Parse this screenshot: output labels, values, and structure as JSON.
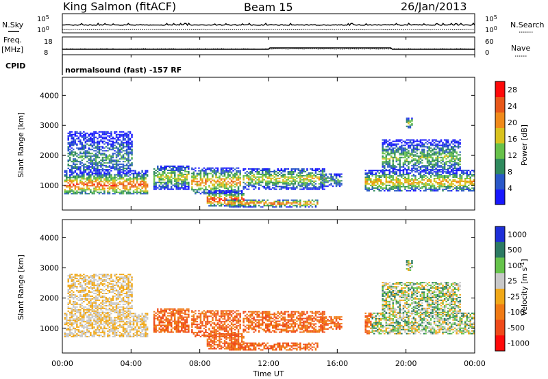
{
  "header": {
    "station": "King Salmon (fitACF)",
    "beam": "Beam 15",
    "date": "26/Jan/2013"
  },
  "params": {
    "nsky_label": "N.Sky",
    "nsearch_label": "N.Search",
    "freq_label_line1": "Freq.",
    "freq_label_line2": "[MHz]",
    "nave_label": "Nave",
    "cpid_label": "CPID",
    "cpid_text": "normalsound (fast) -157 RF",
    "noise_ticks_left": [
      "10^5",
      "10^0"
    ],
    "noise_ticks_right": [
      "10^5",
      "10^0"
    ],
    "freq_ticks": [
      "18",
      "8"
    ],
    "nave_ticks": [
      "60",
      "0"
    ]
  },
  "chart_data": [
    {
      "type": "heatmap",
      "title": "",
      "xlabel": "",
      "ylabel": "Slant Range [km]",
      "xlim_hours": [
        0,
        24
      ],
      "ylim": [
        180,
        4600
      ],
      "y_ticks": [
        "1000",
        "2000",
        "3000",
        "4000"
      ],
      "colorbar": {
        "label": "Power [dB]",
        "ticks": [
          "4",
          "8",
          "12",
          "16",
          "20",
          "24",
          "28"
        ],
        "range": [
          0,
          30
        ],
        "colors": [
          "#1818ff",
          "#2a58c8",
          "#2f8a5e",
          "#67c14a",
          "#d9c21e",
          "#f08a1a",
          "#e8581a",
          "#ff0a0a"
        ]
      }
    },
    {
      "type": "heatmap",
      "title": "",
      "xlabel": "Time UT",
      "ylabel": "Slant Range [km]",
      "xlim_hours": [
        0,
        24
      ],
      "ylim": [
        180,
        4600
      ],
      "y_ticks": [
        "1000",
        "2000",
        "3000",
        "4000"
      ],
      "x_ticks": [
        "00:00",
        "04:00",
        "08:00",
        "12:00",
        "16:00",
        "20:00",
        "00:00"
      ],
      "colorbar": {
        "label": "Velocity [m s^-1]",
        "ticks": [
          "1000",
          "500",
          "100",
          "25",
          "-25",
          "-100",
          "-500",
          "-1000"
        ],
        "colors": [
          "#1e2fd8",
          "#2c7a63",
          "#66c34b",
          "#c8c8c8",
          "#f0a818",
          "#f07a14",
          "#ef4a1a",
          "#ff0a0a"
        ]
      }
    }
  ]
}
